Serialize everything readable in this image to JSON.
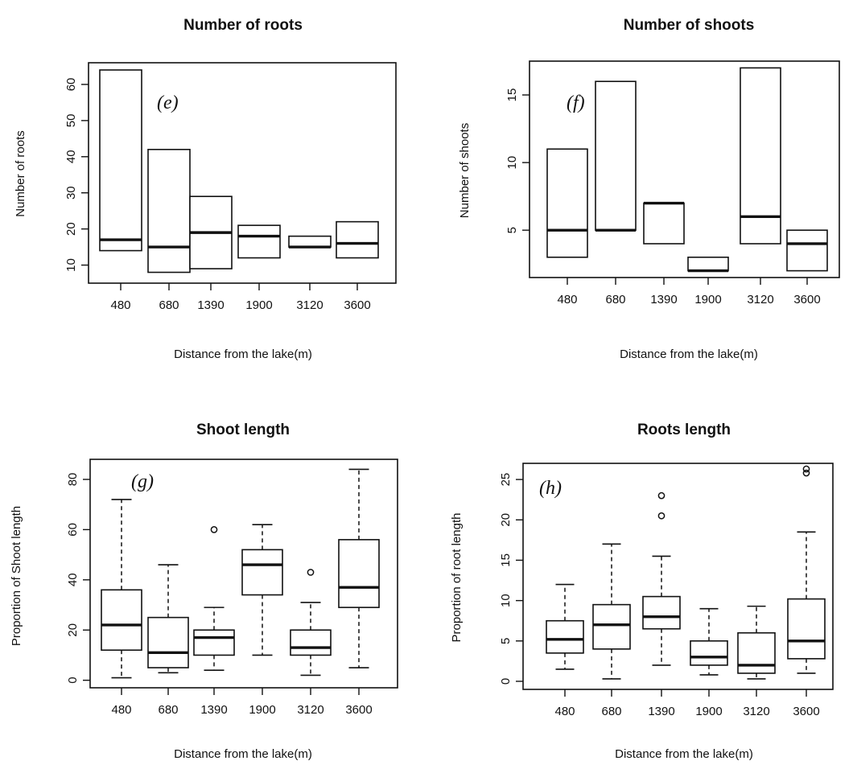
{
  "chart_data": [
    {
      "type": "box",
      "title": "Number of roots",
      "panel_label": "(e)",
      "xlabel": "Distance from the lake(m)",
      "ylabel": "Number of roots",
      "categories": [
        "480",
        "680",
        "1390",
        "1900",
        "3120",
        "3600"
      ],
      "yticks": [
        10,
        20,
        30,
        40,
        50,
        60
      ],
      "ylim": [
        5,
        66
      ],
      "whiskers": false,
      "boxes": [
        {
          "q1": 14,
          "median": 17,
          "q3": 64
        },
        {
          "q1": 8,
          "median": 15,
          "q3": 42
        },
        {
          "q1": 9,
          "median": 19,
          "q3": 29
        },
        {
          "q1": 12,
          "median": 18,
          "q3": 21
        },
        {
          "q1": 15,
          "median": 15,
          "q3": 18
        },
        {
          "q1": 12,
          "median": 16,
          "q3": 22
        }
      ],
      "outliers": [
        [],
        [],
        [],
        [],
        [],
        []
      ]
    },
    {
      "type": "box",
      "title": "Number of shoots",
      "panel_label": "(f)",
      "xlabel": "Distance from the lake(m)",
      "ylabel": "Number of shoots",
      "categories": [
        "480",
        "680",
        "1390",
        "1900",
        "3120",
        "3600"
      ],
      "yticks": [
        5,
        10,
        15
      ],
      "ylim": [
        1.5,
        17.5
      ],
      "whiskers": false,
      "boxes": [
        {
          "q1": 3,
          "median": 5,
          "q3": 11
        },
        {
          "q1": 5,
          "median": 5,
          "q3": 16
        },
        {
          "q1": 4,
          "median": 7,
          "q3": 7
        },
        {
          "q1": 2,
          "median": 2,
          "q3": 3
        },
        {
          "q1": 4,
          "median": 6,
          "q3": 17
        },
        {
          "q1": 2,
          "median": 4,
          "q3": 5
        }
      ],
      "outliers": [
        [],
        [],
        [],
        [],
        [],
        []
      ]
    },
    {
      "type": "box",
      "title": "Shoot length",
      "panel_label": "(g)",
      "xlabel": "Distance from the lake(m)",
      "ylabel": "Proportion of Shoot length",
      "categories": [
        "480",
        "680",
        "1390",
        "1900",
        "3120",
        "3600"
      ],
      "yticks": [
        0,
        20,
        40,
        60,
        80
      ],
      "ylim": [
        -3,
        88
      ],
      "whiskers": true,
      "boxes": [
        {
          "min": 1,
          "q1": 12,
          "median": 22,
          "q3": 36,
          "max": 72
        },
        {
          "min": 3,
          "q1": 5,
          "median": 11,
          "q3": 25,
          "max": 46
        },
        {
          "min": 4,
          "q1": 10,
          "median": 17,
          "q3": 20,
          "max": 29
        },
        {
          "min": 10,
          "q1": 34,
          "median": 46,
          "q3": 52,
          "max": 62
        },
        {
          "min": 2,
          "q1": 10,
          "median": 13,
          "q3": 20,
          "max": 31
        },
        {
          "min": 5,
          "q1": 29,
          "median": 37,
          "q3": 56,
          "max": 84
        }
      ],
      "outliers": [
        [],
        [],
        [
          60
        ],
        [],
        [
          43
        ],
        []
      ]
    },
    {
      "type": "box",
      "title": "Roots length",
      "panel_label": "(h)",
      "xlabel": "Distance from the lake(m)",
      "ylabel": "Proportion of root length",
      "categories": [
        "480",
        "680",
        "1390",
        "1900",
        "3120",
        "3600"
      ],
      "yticks": [
        0,
        5,
        10,
        15,
        20,
        25
      ],
      "ylim": [
        -1,
        27
      ],
      "whiskers": true,
      "boxes": [
        {
          "min": 1.5,
          "q1": 3.5,
          "median": 5.2,
          "q3": 7.5,
          "max": 12
        },
        {
          "min": 0.3,
          "q1": 4,
          "median": 7,
          "q3": 9.5,
          "max": 17
        },
        {
          "min": 2,
          "q1": 6.5,
          "median": 8,
          "q3": 10.5,
          "max": 15.5
        },
        {
          "min": 0.8,
          "q1": 2,
          "median": 3,
          "q3": 5,
          "max": 9
        },
        {
          "min": 0.3,
          "q1": 1,
          "median": 2,
          "q3": 6,
          "max": 9.3
        },
        {
          "min": 1,
          "q1": 2.8,
          "median": 5,
          "q3": 10.2,
          "max": 18.5
        }
      ],
      "outliers": [
        [],
        [],
        [
          20.5,
          23
        ],
        [],
        [],
        [
          25.8,
          26.3
        ]
      ]
    }
  ]
}
